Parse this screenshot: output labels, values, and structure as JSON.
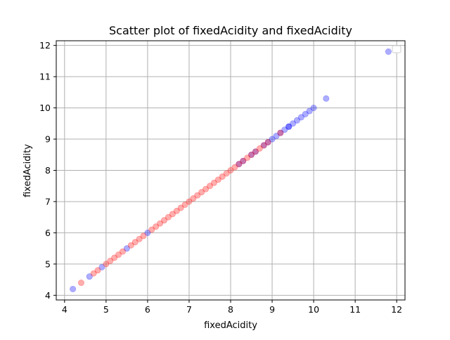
{
  "chart_data": {
    "type": "scatter",
    "title": "Scatter plot of fixedAcidity and fixedAcidity",
    "xlabel": "fixedAcidity",
    "ylabel": "fixedAcidity",
    "xlim": [
      3.8,
      12.2
    ],
    "ylim": [
      3.85,
      12.15
    ],
    "x_ticks": [
      "4",
      "5",
      "6",
      "7",
      "8",
      "9",
      "10",
      "11",
      "12"
    ],
    "y_ticks": [
      "4",
      "5",
      "6",
      "7",
      "8",
      "9",
      "10",
      "11",
      "12"
    ],
    "grid": true,
    "legend": {
      "location": "top-right",
      "entries": []
    },
    "colors": {
      "series_a": "#0000ff",
      "series_b": "#ff0000",
      "grid": "#b0b0b0"
    },
    "series": [
      {
        "color": "#0000ff",
        "values_x": [
          4.2,
          4.6,
          4.9,
          5.5,
          6.0,
          8.2,
          8.3,
          8.5,
          8.6,
          8.8,
          8.9,
          9.0,
          9.1,
          9.2,
          9.3,
          9.4,
          9.4,
          9.5,
          9.6,
          9.7,
          9.8,
          9.9,
          10.0,
          10.3,
          11.8
        ],
        "values_y": [
          4.2,
          4.6,
          4.9,
          5.5,
          6.0,
          8.2,
          8.3,
          8.5,
          8.6,
          8.8,
          8.9,
          9.0,
          9.1,
          9.2,
          9.3,
          9.4,
          9.4,
          9.5,
          9.6,
          9.7,
          9.8,
          9.9,
          10.0,
          10.3,
          11.8
        ]
      },
      {
        "color": "#ff0000",
        "values_x": [
          4.4,
          4.7,
          4.8,
          5.0,
          5.1,
          5.2,
          5.3,
          5.4,
          5.6,
          5.7,
          5.8,
          5.9,
          6.1,
          6.2,
          6.3,
          6.4,
          6.5,
          6.6,
          6.7,
          6.8,
          6.9,
          7.0,
          7.1,
          7.2,
          7.3,
          7.4,
          7.5,
          7.6,
          7.7,
          7.8,
          7.9,
          8.0,
          8.1,
          8.2,
          8.3,
          8.4,
          8.5,
          8.6,
          8.7,
          8.8,
          8.9,
          9.2
        ],
        "values_y": [
          4.4,
          4.7,
          4.8,
          5.0,
          5.1,
          5.2,
          5.3,
          5.4,
          5.6,
          5.7,
          5.8,
          5.9,
          6.1,
          6.2,
          6.3,
          6.4,
          6.5,
          6.6,
          6.7,
          6.8,
          6.9,
          7.0,
          7.1,
          7.2,
          7.3,
          7.4,
          7.5,
          7.6,
          7.7,
          7.8,
          7.9,
          8.0,
          8.1,
          8.2,
          8.3,
          8.4,
          8.5,
          8.6,
          8.7,
          8.8,
          8.9,
          9.2
        ]
      }
    ]
  }
}
